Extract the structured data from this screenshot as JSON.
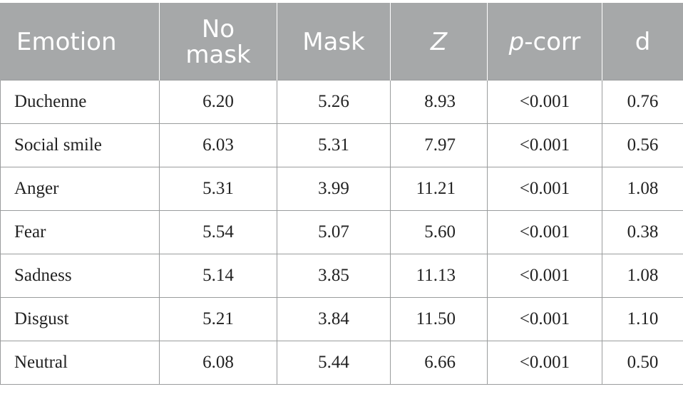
{
  "table": {
    "headers": [
      {
        "text": "Emotion",
        "italic_prefix": ""
      },
      {
        "text": "No mask",
        "italic_prefix": ""
      },
      {
        "text": "Mask",
        "italic_prefix": ""
      },
      {
        "text": "",
        "italic_prefix": "Z"
      },
      {
        "text": "-corr",
        "italic_prefix": "p"
      },
      {
        "text": "d",
        "italic_prefix": ""
      }
    ],
    "rows": [
      [
        "Duchenne",
        "6.20",
        "5.26",
        "8.93",
        "<0.001",
        "0.76"
      ],
      [
        "Social smile",
        "6.03",
        "5.31",
        "7.97",
        "<0.001",
        "0.56"
      ],
      [
        "Anger",
        "5.31",
        "3.99",
        "11.21",
        "<0.001",
        "1.08"
      ],
      [
        "Fear",
        "5.54",
        "5.07",
        "5.60",
        "<0.001",
        "0.38"
      ],
      [
        "Sadness",
        "5.14",
        "3.85",
        "11.13",
        "<0.001",
        "1.08"
      ],
      [
        "Disgust",
        "5.21",
        "3.84",
        "11.50",
        "<0.001",
        "1.10"
      ],
      [
        "Neutral",
        "6.08",
        "5.44",
        "6.66",
        "<0.001",
        "0.50"
      ]
    ]
  },
  "colors": {
    "header_background": "#a6a8a9",
    "header_text": "#ffffff",
    "body_text": "#222222",
    "grid_line": "#9a9c9d"
  }
}
